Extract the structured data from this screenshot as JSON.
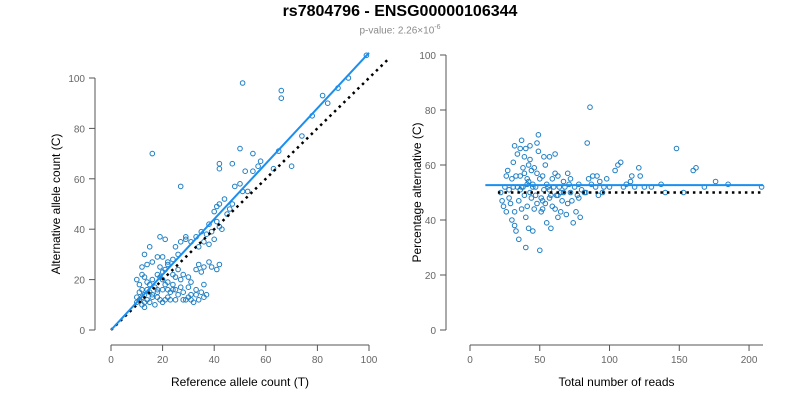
{
  "header": {
    "title": "rs7804796 - ENSG00000106344",
    "pvalue_label": "p-value: 2.26×10",
    "pvalue_exponent": "-6"
  },
  "colors": {
    "points": "#1f7fc4",
    "fit_line": "#1a8ff0",
    "reference_line": "#000000",
    "axis": "#555555",
    "tick_label": "#666666",
    "axis_title": "#000000"
  },
  "chart_data": [
    {
      "type": "scatter",
      "title": "",
      "xlabel": "Reference allele count (T)",
      "ylabel": "Alternative allele count (C)",
      "xlim": [
        0,
        100
      ],
      "ylim": [
        0,
        100
      ],
      "xticks": [
        "0",
        "20",
        "40",
        "60",
        "80",
        "100"
      ],
      "yticks": [
        "0",
        "20",
        "40",
        "60",
        "80",
        "100"
      ],
      "grid": false,
      "fit_line": [
        [
          0,
          0
        ],
        [
          100,
          110
        ]
      ],
      "reference_line": [
        [
          0,
          0
        ],
        [
          108,
          108
        ]
      ],
      "points": [
        [
          10,
          11
        ],
        [
          11,
          12
        ],
        [
          12,
          10
        ],
        [
          13,
          11
        ],
        [
          10,
          13
        ],
        [
          11,
          15
        ],
        [
          13,
          14
        ],
        [
          14,
          12
        ],
        [
          12,
          16
        ],
        [
          15,
          15
        ],
        [
          11,
          18
        ],
        [
          10,
          20
        ],
        [
          12,
          22
        ],
        [
          13,
          21
        ],
        [
          14,
          19
        ],
        [
          15,
          18
        ],
        [
          16,
          20
        ],
        [
          17,
          17
        ],
        [
          18,
          16
        ],
        [
          18,
          22
        ],
        [
          19,
          21
        ],
        [
          20,
          20
        ],
        [
          21,
          18
        ],
        [
          22,
          19
        ],
        [
          20,
          23
        ],
        [
          19,
          25
        ],
        [
          21,
          24
        ],
        [
          22,
          26
        ],
        [
          24,
          22
        ],
        [
          25,
          21
        ],
        [
          26,
          24
        ],
        [
          27,
          20
        ],
        [
          28,
          22
        ],
        [
          30,
          21
        ],
        [
          31,
          19
        ],
        [
          33,
          24
        ],
        [
          34,
          26
        ],
        [
          35,
          23
        ],
        [
          36,
          25
        ],
        [
          38,
          27
        ],
        [
          39,
          25
        ],
        [
          41,
          24
        ],
        [
          42,
          26
        ],
        [
          12,
          25
        ],
        [
          14,
          26
        ],
        [
          16,
          27
        ],
        [
          18,
          29
        ],
        [
          20,
          29
        ],
        [
          22,
          27
        ],
        [
          24,
          28
        ],
        [
          26,
          30
        ],
        [
          25,
          33
        ],
        [
          27,
          35
        ],
        [
          29,
          36
        ],
        [
          31,
          35
        ],
        [
          33,
          37
        ],
        [
          34,
          33
        ],
        [
          36,
          35
        ],
        [
          37,
          38
        ],
        [
          38,
          34
        ],
        [
          40,
          36
        ],
        [
          13,
          30
        ],
        [
          15,
          33
        ],
        [
          19,
          37
        ],
        [
          21,
          36
        ],
        [
          29,
          37
        ],
        [
          35,
          39
        ],
        [
          38,
          42
        ],
        [
          39,
          39
        ],
        [
          41,
          43
        ],
        [
          42,
          41
        ],
        [
          43,
          40
        ],
        [
          40,
          47
        ],
        [
          41,
          49
        ],
        [
          42,
          50
        ],
        [
          44,
          52
        ],
        [
          45,
          46
        ],
        [
          46,
          48
        ],
        [
          47,
          50
        ],
        [
          48,
          57
        ],
        [
          50,
          58
        ],
        [
          51,
          55
        ],
        [
          53,
          55
        ],
        [
          52,
          63
        ],
        [
          55,
          63
        ],
        [
          55,
          70
        ],
        [
          57,
          65
        ],
        [
          58,
          67
        ],
        [
          42,
          64
        ],
        [
          42,
          66
        ],
        [
          47,
          66
        ],
        [
          50,
          72
        ],
        [
          51,
          98
        ],
        [
          63,
          64
        ],
        [
          65,
          71
        ],
        [
          66,
          92
        ],
        [
          66,
          95
        ],
        [
          70,
          65
        ],
        [
          74,
          77
        ],
        [
          78,
          85
        ],
        [
          82,
          93
        ],
        [
          84,
          90
        ],
        [
          88,
          96
        ],
        [
          92,
          100
        ],
        [
          99,
          109
        ],
        [
          16,
          70
        ],
        [
          27,
          57
        ],
        [
          16,
          14
        ],
        [
          18,
          13
        ],
        [
          19,
          12
        ],
        [
          20,
          11
        ],
        [
          22,
          13
        ],
        [
          23,
          15
        ],
        [
          24,
          16
        ],
        [
          26,
          14
        ],
        [
          28,
          15
        ],
        [
          30,
          17
        ],
        [
          31,
          14
        ],
        [
          33,
          16
        ],
        [
          34,
          12
        ],
        [
          35,
          15
        ],
        [
          36,
          18
        ],
        [
          37,
          14
        ],
        [
          24,
          18
        ],
        [
          25,
          16
        ],
        [
          27,
          17
        ],
        [
          29,
          12
        ],
        [
          30,
          13
        ],
        [
          32,
          11
        ],
        [
          21,
          12
        ],
        [
          17,
          10
        ],
        [
          15,
          11
        ],
        [
          13,
          9
        ],
        [
          12,
          13
        ],
        [
          14,
          16
        ],
        [
          16,
          13
        ],
        [
          18,
          15
        ],
        [
          20,
          16
        ],
        [
          22,
          16
        ],
        [
          23,
          12
        ],
        [
          25,
          12
        ],
        [
          28,
          12
        ],
        [
          31,
          12
        ],
        [
          33,
          14
        ],
        [
          36,
          13
        ]
      ]
    },
    {
      "type": "scatter",
      "title": "",
      "xlabel": "Total number of reads",
      "ylabel": "Percentage alternative (C)",
      "xlim": [
        0,
        210
      ],
      "ylim": [
        0,
        100
      ],
      "xticks": [
        "0",
        "50",
        "100",
        "150",
        "200"
      ],
      "yticks": [
        "0",
        "20",
        "40",
        "60",
        "80",
        "100"
      ],
      "grid": false,
      "fit_line": [
        [
          11,
          52.7
        ],
        [
          210,
          52.7
        ]
      ],
      "reference_line": [
        [
          20,
          50
        ],
        [
          210,
          50
        ]
      ],
      "points": [
        [
          22,
          50
        ],
        [
          23,
          47
        ],
        [
          24,
          45
        ],
        [
          25,
          52
        ],
        [
          26,
          43
        ],
        [
          26,
          56
        ],
        [
          27,
          58
        ],
        [
          28,
          51
        ],
        [
          28,
          48
        ],
        [
          29,
          46
        ],
        [
          30,
          40
        ],
        [
          30,
          55
        ],
        [
          31,
          52
        ],
        [
          31,
          61
        ],
        [
          32,
          43
        ],
        [
          32,
          38
        ],
        [
          33,
          36
        ],
        [
          33,
          56
        ],
        [
          34,
          52
        ],
        [
          34,
          64
        ],
        [
          35,
          47
        ],
        [
          35,
          33
        ],
        [
          36,
          51
        ],
        [
          36,
          66
        ],
        [
          37,
          69
        ],
        [
          37,
          44
        ],
        [
          38,
          52
        ],
        [
          38,
          59
        ],
        [
          39,
          57
        ],
        [
          39,
          49
        ],
        [
          40,
          41
        ],
        [
          40,
          66
        ],
        [
          40,
          30
        ],
        [
          41,
          53
        ],
        [
          41,
          45
        ],
        [
          42,
          37
        ],
        [
          42,
          54
        ],
        [
          43,
          50
        ],
        [
          43,
          62
        ],
        [
          44,
          48
        ],
        [
          45,
          52
        ],
        [
          45,
          36
        ],
        [
          46,
          44
        ],
        [
          46,
          59
        ],
        [
          47,
          52
        ],
        [
          47,
          49
        ],
        [
          48,
          68
        ],
        [
          48,
          46
        ],
        [
          49,
          65
        ],
        [
          50,
          55
        ],
        [
          50,
          29
        ],
        [
          51,
          48
        ],
        [
          51,
          43
        ],
        [
          52,
          44
        ],
        [
          52,
          56
        ],
        [
          53,
          51
        ],
        [
          54,
          46
        ],
        [
          54,
          60
        ],
        [
          55,
          39
        ],
        [
          56,
          52
        ],
        [
          57,
          48
        ],
        [
          57,
          63
        ],
        [
          58,
          49
        ],
        [
          58,
          37
        ],
        [
          59,
          55
        ],
        [
          60,
          52
        ],
        [
          61,
          44
        ],
        [
          61,
          57
        ],
        [
          62,
          49
        ],
        [
          63,
          56
        ],
        [
          63,
          41
        ],
        [
          64,
          52
        ],
        [
          65,
          43
        ],
        [
          66,
          47
        ],
        [
          67,
          50
        ],
        [
          67,
          54
        ],
        [
          68,
          52
        ],
        [
          69,
          42
        ],
        [
          70,
          46
        ],
        [
          70,
          57
        ],
        [
          71,
          53
        ],
        [
          72,
          50
        ],
        [
          73,
          47
        ],
        [
          74,
          39
        ],
        [
          75,
          52
        ],
        [
          76,
          43
        ],
        [
          77,
          49
        ],
        [
          78,
          48
        ],
        [
          79,
          41
        ],
        [
          80,
          51
        ],
        [
          82,
          50
        ],
        [
          84,
          68
        ],
        [
          85,
          55
        ],
        [
          86,
          81
        ],
        [
          87,
          53
        ],
        [
          88,
          56
        ],
        [
          90,
          52
        ],
        [
          91,
          56
        ],
        [
          92,
          49
        ],
        [
          93,
          54
        ],
        [
          96,
          52
        ],
        [
          98,
          55
        ],
        [
          104,
          58
        ],
        [
          106,
          60
        ],
        [
          108,
          61
        ],
        [
          112,
          53
        ],
        [
          116,
          56
        ],
        [
          118,
          52
        ],
        [
          121,
          59
        ],
        [
          122,
          56
        ],
        [
          125,
          52
        ],
        [
          137,
          53
        ],
        [
          148,
          66
        ],
        [
          153,
          50
        ],
        [
          160,
          58
        ],
        [
          162,
          59
        ],
        [
          168,
          52
        ],
        [
          176,
          54
        ],
        [
          185,
          53
        ],
        [
          209,
          52
        ],
        [
          37,
          52
        ],
        [
          39,
          63
        ],
        [
          42,
          60
        ],
        [
          53,
          63
        ],
        [
          61,
          64
        ],
        [
          32,
          67
        ],
        [
          43,
          67
        ],
        [
          49,
          71
        ],
        [
          36,
          56
        ],
        [
          41,
          55
        ],
        [
          44,
          58
        ],
        [
          48,
          57
        ],
        [
          55,
          53
        ],
        [
          59,
          45
        ],
        [
          65,
          50
        ],
        [
          72,
          55
        ],
        [
          78,
          53
        ],
        [
          83,
          50
        ],
        [
          95,
          50
        ],
        [
          100,
          52
        ],
        [
          110,
          52
        ],
        [
          115,
          54
        ],
        [
          130,
          52
        ],
        [
          140,
          50
        ],
        [
          45,
          53
        ],
        [
          52,
          47
        ],
        [
          57,
          51
        ],
        [
          63,
          49
        ]
      ]
    }
  ]
}
